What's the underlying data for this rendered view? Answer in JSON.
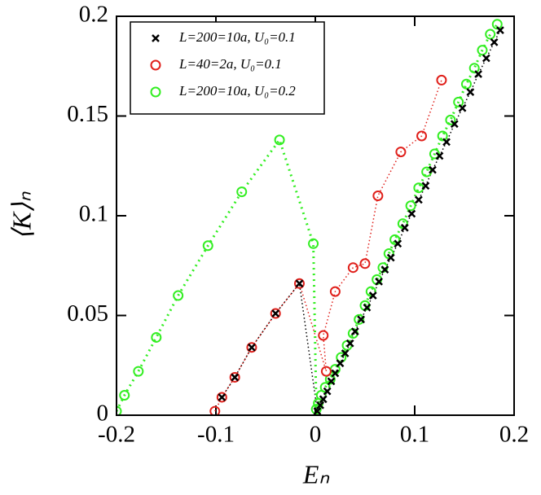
{
  "chart_data": {
    "type": "scatter",
    "xlabel": "Eₙ",
    "ylabel": "⟨K⟩ₙ",
    "xlim": [
      -0.2,
      0.2
    ],
    "ylim": [
      0,
      0.2
    ],
    "xticks": [
      -0.2,
      -0.1,
      0,
      0.1,
      0.2
    ],
    "yticks": [
      0,
      0.05,
      0.1,
      0.15,
      0.2
    ],
    "legend": "upper left",
    "series": [
      {
        "name": "L=200=10a, U₀=0.1",
        "color": "#000000",
        "marker": "x",
        "x": [
          -0.094,
          -0.081,
          -0.064,
          -0.04,
          -0.016,
          0.002,
          0.005,
          0.008,
          0.012,
          0.016,
          0.02,
          0.025,
          0.03,
          0.035,
          0.04,
          0.046,
          0.052,
          0.058,
          0.064,
          0.07,
          0.076,
          0.083,
          0.09,
          0.097,
          0.104,
          0.111,
          0.118,
          0.125,
          0.132,
          0.14,
          0.148,
          0.156,
          0.164,
          0.172,
          0.18,
          0.186
        ],
        "y": [
          0.009,
          0.019,
          0.034,
          0.051,
          0.066,
          0.002,
          0.005,
          0.008,
          0.012,
          0.017,
          0.021,
          0.026,
          0.031,
          0.036,
          0.042,
          0.048,
          0.054,
          0.06,
          0.067,
          0.073,
          0.079,
          0.086,
          0.094,
          0.101,
          0.108,
          0.115,
          0.123,
          0.13,
          0.137,
          0.146,
          0.154,
          0.162,
          0.171,
          0.179,
          0.187,
          0.193
        ]
      },
      {
        "name": "L=40=2a, U₀=0.1",
        "color": "#e0201b",
        "marker": "o",
        "x": [
          -0.101,
          -0.094,
          -0.081,
          -0.064,
          -0.04,
          -0.016,
          0.011,
          0.008,
          0.02,
          0.038,
          0.05,
          0.063,
          0.086,
          0.107,
          0.127
        ],
        "y": [
          0.002,
          0.009,
          0.019,
          0.034,
          0.051,
          0.066,
          0.022,
          0.04,
          0.062,
          0.074,
          0.076,
          0.11,
          0.132,
          0.14,
          0.168
        ]
      },
      {
        "name": "L=200=10a, U₀=0.2",
        "color": "#33ee22",
        "marker": "o",
        "x": [
          -0.2,
          -0.192,
          -0.178,
          -0.16,
          -0.138,
          -0.108,
          -0.074,
          -0.036,
          -0.002,
          0.001,
          0.003,
          0.006,
          0.01,
          0.015,
          0.02,
          0.026,
          0.032,
          0.038,
          0.044,
          0.05,
          0.056,
          0.062,
          0.068,
          0.074,
          0.08,
          0.088,
          0.096,
          0.104,
          0.112,
          0.12,
          0.128,
          0.136,
          0.144,
          0.152,
          0.16,
          0.168,
          0.176,
          0.183
        ],
        "y": [
          0.002,
          0.01,
          0.022,
          0.039,
          0.06,
          0.085,
          0.112,
          0.138,
          0.086,
          0.003,
          0.006,
          0.01,
          0.014,
          0.018,
          0.023,
          0.029,
          0.035,
          0.041,
          0.048,
          0.055,
          0.062,
          0.068,
          0.074,
          0.081,
          0.088,
          0.096,
          0.105,
          0.114,
          0.122,
          0.131,
          0.14,
          0.148,
          0.157,
          0.166,
          0.174,
          0.183,
          0.191,
          0.196
        ]
      }
    ]
  }
}
